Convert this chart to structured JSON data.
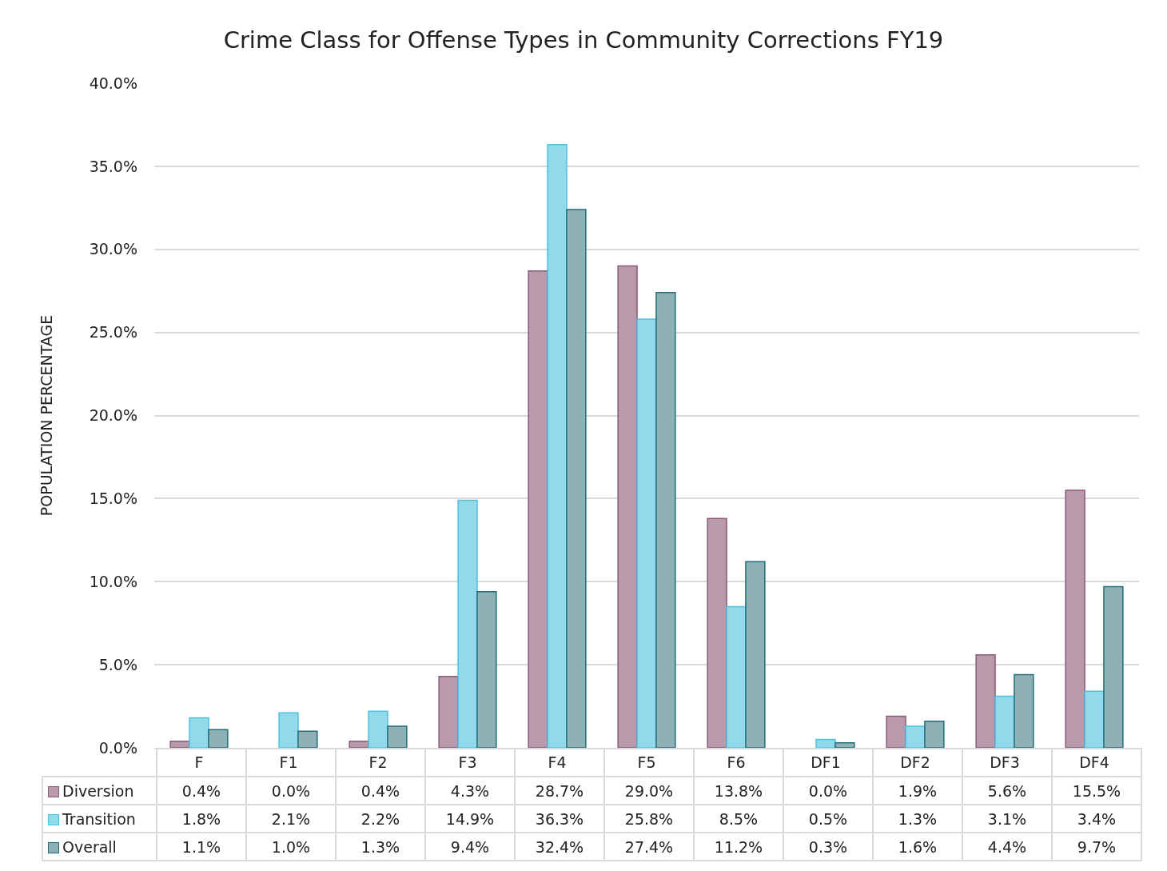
{
  "chart_data": {
    "type": "bar",
    "title": "Crime Class for Offense Types in Community Corrections FY19",
    "ylabel": "POPULATION PERCENTAGE",
    "categories": [
      "F",
      "F1",
      "F2",
      "F3",
      "F4",
      "F5",
      "F6",
      "DF1",
      "DF2",
      "DF3",
      "DF4"
    ],
    "series": [
      {
        "name": "Diversion",
        "color": "#b89aab",
        "values": [
          0.4,
          0.0,
          0.4,
          4.3,
          28.7,
          29.0,
          13.8,
          0.0,
          1.9,
          5.6,
          15.5
        ],
        "value_labels": [
          "0.4%",
          "0.0%",
          "0.4%",
          "4.3%",
          "28.7%",
          "29.0%",
          "13.8%",
          "0.0%",
          "1.9%",
          "5.6%",
          "15.5%"
        ]
      },
      {
        "name": "Transition",
        "color": "#92d9ea",
        "values": [
          1.8,
          2.1,
          2.2,
          14.9,
          36.3,
          25.8,
          8.5,
          0.5,
          1.3,
          3.1,
          3.4
        ],
        "value_labels": [
          "1.8%",
          "2.1%",
          "2.2%",
          "14.9%",
          "36.3%",
          "25.8%",
          "8.5%",
          "0.5%",
          "1.3%",
          "3.1%",
          "3.4%"
        ]
      },
      {
        "name": "Overall",
        "color": "#8fb0b5",
        "values": [
          1.1,
          1.0,
          1.3,
          9.4,
          32.4,
          27.4,
          11.2,
          0.3,
          1.6,
          4.4,
          9.7
        ],
        "value_labels": [
          "1.1%",
          "1.0%",
          "1.3%",
          "9.4%",
          "32.4%",
          "27.4%",
          "11.2%",
          "0.3%",
          "1.6%",
          "4.4%",
          "9.7%"
        ]
      }
    ],
    "ylim": [
      0,
      40
    ],
    "yticks": [
      {
        "value": 0,
        "label": "0.0%"
      },
      {
        "value": 5,
        "label": "5.0%"
      },
      {
        "value": 10,
        "label": "10.0%"
      },
      {
        "value": 15,
        "label": "15.0%"
      },
      {
        "value": 20,
        "label": "20.0%"
      },
      {
        "value": 25,
        "label": "25.0%"
      },
      {
        "value": 30,
        "label": "30.0%"
      },
      {
        "value": 35,
        "label": "35.0%"
      },
      {
        "value": 40,
        "label": "40.0%"
      }
    ],
    "grid": "y",
    "legend": "bottom left"
  }
}
